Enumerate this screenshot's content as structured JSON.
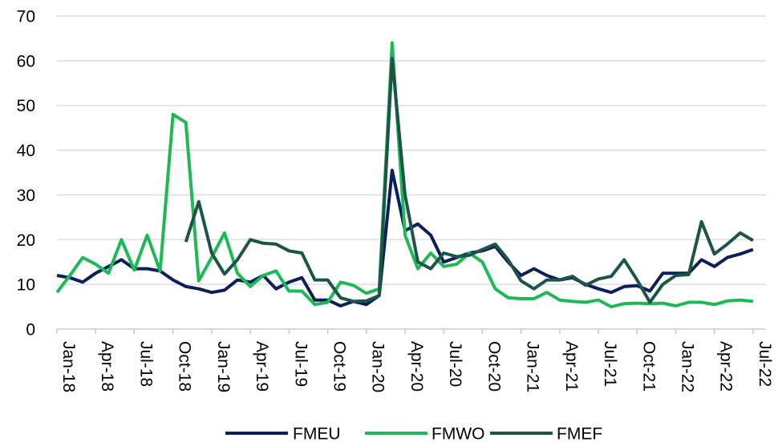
{
  "chart_data": {
    "type": "line",
    "title": "",
    "xlabel": "",
    "ylabel": "",
    "ylim": [
      0,
      70
    ],
    "yticks": [
      0,
      10,
      20,
      30,
      40,
      50,
      60,
      70
    ],
    "grid": "horizontal",
    "legend_position": "bottom",
    "x": [
      "Jan-18",
      "Feb-18",
      "Mar-18",
      "Apr-18",
      "May-18",
      "Jun-18",
      "Jul-18",
      "Aug-18",
      "Sep-18",
      "Oct-18",
      "Nov-18",
      "Dec-18",
      "Jan-19",
      "Feb-19",
      "Mar-19",
      "Apr-19",
      "May-19",
      "Jun-19",
      "Jul-19",
      "Aug-19",
      "Sep-19",
      "Oct-19",
      "Nov-19",
      "Dec-19",
      "Jan-20",
      "Feb-20",
      "Mar-20",
      "Apr-20",
      "May-20",
      "Jun-20",
      "Jul-20",
      "Aug-20",
      "Sep-20",
      "Oct-20",
      "Nov-20",
      "Dec-20",
      "Jan-21",
      "Feb-21",
      "Mar-21",
      "Apr-21",
      "May-21",
      "Jun-21",
      "Jul-21",
      "Aug-21",
      "Sep-21",
      "Oct-21",
      "Nov-21",
      "Dec-21",
      "Jan-22",
      "Feb-22",
      "Mar-22",
      "Apr-22",
      "May-22",
      "Jun-22",
      "Jul-22",
      "Aug-22"
    ],
    "x_tick_labels": [
      "Jan-18",
      "Apr-18",
      "Jul-18",
      "Oct-18",
      "Jan-19",
      "Apr-19",
      "Jul-19",
      "Oct-19",
      "Jan-20",
      "Apr-20",
      "Jul-20",
      "Oct-20",
      "Jan-21",
      "Apr-21",
      "Jul-21",
      "Oct-21",
      "Jan-22",
      "Apr-22",
      "Jul-22"
    ],
    "series": [
      {
        "name": "FMEU",
        "color": "#0B1F5C",
        "values": [
          12,
          11.5,
          10.5,
          12.5,
          14,
          15.5,
          13.5,
          13.5,
          13,
          11,
          9.5,
          9,
          8.2,
          8.7,
          11,
          10.5,
          12,
          9,
          10.5,
          11.5,
          6.5,
          6.5,
          5.2,
          6.2,
          5.5,
          7.5,
          35.5,
          22,
          23.5,
          21,
          15,
          16,
          17,
          17.5,
          18.5,
          15,
          12,
          13.5,
          12,
          11,
          11.5,
          10,
          9,
          8.2,
          9.5,
          9.7,
          8.5,
          12.5,
          12.5,
          12.5,
          15.5,
          14,
          16,
          16.8,
          17.8,
          null
        ]
      },
      {
        "name": "FMWO",
        "color": "#1DB954",
        "values": [
          8.2,
          12,
          16,
          14.5,
          12.5,
          20,
          13.2,
          21,
          13,
          48,
          46.2,
          10.8,
          16,
          21.5,
          12.5,
          9.5,
          12,
          13,
          8.5,
          8.5,
          5.5,
          6,
          10.5,
          9.8,
          8,
          9,
          64,
          21,
          13.5,
          17,
          14,
          14.5,
          17,
          15,
          9,
          7,
          6.8,
          6.8,
          8.2,
          6.5,
          6.2,
          6,
          6.5,
          5,
          5.7,
          5.8,
          5.7,
          5.8,
          5.2,
          6,
          6,
          5.5,
          6.3,
          6.5,
          6.2,
          null
        ]
      },
      {
        "name": "FMEF",
        "color": "#1C5448",
        "values": [
          null,
          null,
          null,
          null,
          null,
          null,
          null,
          null,
          null,
          null,
          19.5,
          28.5,
          17,
          12.3,
          15.5,
          20,
          19.2,
          19,
          17.5,
          17,
          11,
          11,
          7,
          6.2,
          6.3,
          7.5,
          60.5,
          30,
          15,
          13.5,
          17,
          16.2,
          16.5,
          17.8,
          19,
          15.5,
          10.8,
          9,
          11,
          11,
          11.8,
          9.8,
          11.2,
          11.8,
          15.5,
          11,
          6,
          10,
          12,
          12.2,
          24,
          16.8,
          19,
          21.5,
          19.8,
          null
        ]
      }
    ]
  }
}
